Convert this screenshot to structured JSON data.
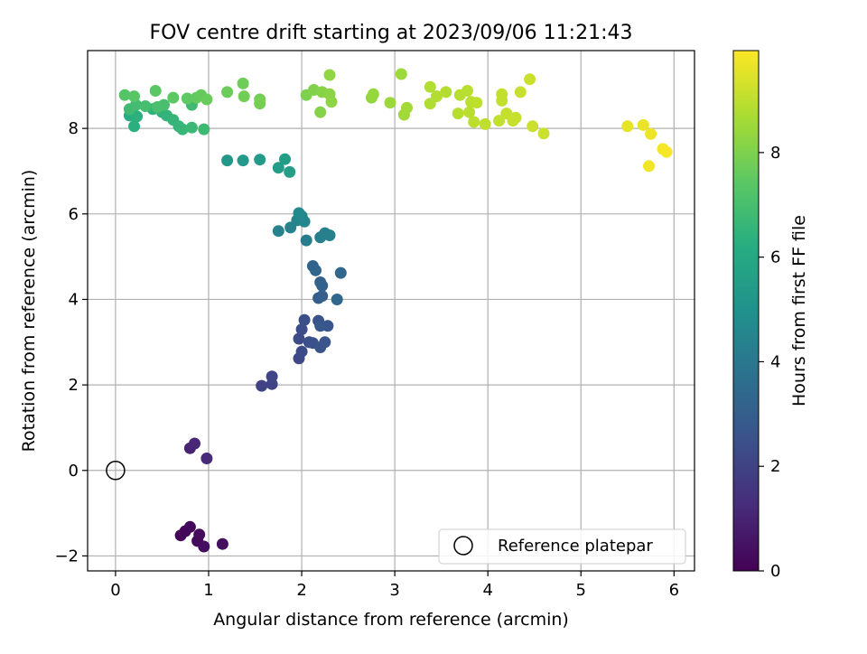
{
  "chart_data": {
    "type": "scatter",
    "title": "FOV centre drift starting at 2023/09/06 11:21:43",
    "xlabel": "Angular distance from reference (arcmin)",
    "ylabel": "Rotation from reference (arcmin)",
    "xlim": [
      -0.3,
      6.22
    ],
    "ylim": [
      -2.35,
      9.82
    ],
    "xticks": [
      0,
      1,
      2,
      3,
      4,
      5,
      6
    ],
    "yticks": [
      -2,
      0,
      2,
      4,
      6,
      8
    ],
    "xtick_labels": [
      "0",
      "1",
      "2",
      "3",
      "4",
      "5",
      "6"
    ],
    "ytick_labels": [
      "−2",
      "0",
      "2",
      "4",
      "6",
      "8"
    ],
    "grid": true,
    "colormap": "viridis",
    "colorbar": {
      "label": "Hours from first FF file",
      "range": [
        0,
        9.95
      ],
      "ticks": [
        0,
        2,
        4,
        6,
        8
      ],
      "tick_labels": [
        "0",
        "2",
        "4",
        "6",
        "8"
      ]
    },
    "legend": {
      "position": "lower-right",
      "entries": [
        "Reference platepar"
      ]
    },
    "reference_point": {
      "x": 0,
      "y": 0
    },
    "points": [
      [
        0.7,
        -1.52,
        0.1
      ],
      [
        0.75,
        -1.42,
        0.15
      ],
      [
        0.8,
        -1.32,
        0.2
      ],
      [
        0.88,
        -1.65,
        0.25
      ],
      [
        0.9,
        -1.5,
        0.3
      ],
      [
        0.95,
        -1.78,
        0.35
      ],
      [
        1.15,
        -1.72,
        0.4
      ],
      [
        0.8,
        0.52,
        1.0
      ],
      [
        0.85,
        0.63,
        1.1
      ],
      [
        0.98,
        0.28,
        1.2
      ],
      [
        1.57,
        1.98,
        2.0
      ],
      [
        1.68,
        2.02,
        2.05
      ],
      [
        1.68,
        2.2,
        2.1
      ],
      [
        1.97,
        2.62,
        2.2
      ],
      [
        2.0,
        2.78,
        2.25
      ],
      [
        1.97,
        3.08,
        2.3
      ],
      [
        2.0,
        3.3,
        2.35
      ],
      [
        2.03,
        3.52,
        2.4
      ],
      [
        2.08,
        3.0,
        2.45
      ],
      [
        2.12,
        2.98,
        2.5
      ],
      [
        2.18,
        3.5,
        2.55
      ],
      [
        2.2,
        2.88,
        2.6
      ],
      [
        2.25,
        3.0,
        2.65
      ],
      [
        2.28,
        3.38,
        2.7
      ],
      [
        2.2,
        3.38,
        2.75
      ],
      [
        2.18,
        4.03,
        3.0
      ],
      [
        2.22,
        4.08,
        3.05
      ],
      [
        2.2,
        4.4,
        3.1
      ],
      [
        2.22,
        4.32,
        3.15
      ],
      [
        2.12,
        4.78,
        3.2
      ],
      [
        2.15,
        4.68,
        3.25
      ],
      [
        2.38,
        4.0,
        3.3
      ],
      [
        2.42,
        4.62,
        3.35
      ],
      [
        2.05,
        5.38,
        4.2
      ],
      [
        2.2,
        5.45,
        4.25
      ],
      [
        2.25,
        5.55,
        4.3
      ],
      [
        2.3,
        5.5,
        4.35
      ],
      [
        1.75,
        5.6,
        4.4
      ],
      [
        1.88,
        5.68,
        4.45
      ],
      [
        1.95,
        5.85,
        4.5
      ],
      [
        2.0,
        5.95,
        4.55
      ],
      [
        2.03,
        5.82,
        4.6
      ],
      [
        1.97,
        6.02,
        4.65
      ],
      [
        1.2,
        7.25,
        5.3
      ],
      [
        1.37,
        7.25,
        5.35
      ],
      [
        1.55,
        7.27,
        5.4
      ],
      [
        1.75,
        7.08,
        5.45
      ],
      [
        1.82,
        7.28,
        5.5
      ],
      [
        1.87,
        6.98,
        5.55
      ],
      [
        0.15,
        8.3,
        6.2
      ],
      [
        0.18,
        8.4,
        6.25
      ],
      [
        0.2,
        8.05,
        6.3
      ],
      [
        0.23,
        8.28,
        6.35
      ],
      [
        0.4,
        8.45,
        6.4
      ],
      [
        0.5,
        8.38,
        6.45
      ],
      [
        0.55,
        8.3,
        6.5
      ],
      [
        0.62,
        8.2,
        6.55
      ],
      [
        0.68,
        8.05,
        6.6
      ],
      [
        0.72,
        7.98,
        6.65
      ],
      [
        0.82,
        8.02,
        6.7
      ],
      [
        0.95,
        7.98,
        6.75
      ],
      [
        0.82,
        8.55,
        6.8
      ],
      [
        0.15,
        8.45,
        6.85
      ],
      [
        0.22,
        8.55,
        6.9
      ],
      [
        0.32,
        8.52,
        6.95
      ],
      [
        0.52,
        8.55,
        7.0
      ],
      [
        0.45,
        8.5,
        7.05
      ],
      [
        0.1,
        8.78,
        7.3
      ],
      [
        0.2,
        8.75,
        7.35
      ],
      [
        0.43,
        8.88,
        7.4
      ],
      [
        0.62,
        8.72,
        7.45
      ],
      [
        0.77,
        8.7,
        7.5
      ],
      [
        0.87,
        8.72,
        7.55
      ],
      [
        0.92,
        8.78,
        7.6
      ],
      [
        0.98,
        8.68,
        7.65
      ],
      [
        1.2,
        8.85,
        7.7
      ],
      [
        1.37,
        9.05,
        7.75
      ],
      [
        1.38,
        8.75,
        7.8
      ],
      [
        1.55,
        8.68,
        7.85
      ],
      [
        1.55,
        8.58,
        7.9
      ],
      [
        2.05,
        8.78,
        8.0
      ],
      [
        2.13,
        8.9,
        8.05
      ],
      [
        2.2,
        8.38,
        8.1
      ],
      [
        2.22,
        8.85,
        8.15
      ],
      [
        2.3,
        8.8,
        8.2
      ],
      [
        2.32,
        8.62,
        8.25
      ],
      [
        2.3,
        9.25,
        8.3
      ],
      [
        2.75,
        8.72,
        8.35
      ],
      [
        2.77,
        8.8,
        8.4
      ],
      [
        2.95,
        8.6,
        8.45
      ],
      [
        3.07,
        9.27,
        8.5
      ],
      [
        3.1,
        8.32,
        8.55
      ],
      [
        3.13,
        8.48,
        8.6
      ],
      [
        3.38,
        8.58,
        8.8
      ],
      [
        3.38,
        8.97,
        8.82
      ],
      [
        3.45,
        8.75,
        8.84
      ],
      [
        3.55,
        8.85,
        8.86
      ],
      [
        3.68,
        8.35,
        8.88
      ],
      [
        3.7,
        8.78,
        8.9
      ],
      [
        3.78,
        8.88,
        8.92
      ],
      [
        3.8,
        8.38,
        8.94
      ],
      [
        3.82,
        8.62,
        8.96
      ],
      [
        3.85,
        8.15,
        8.98
      ],
      [
        3.88,
        8.6,
        9.0
      ],
      [
        3.97,
        8.1,
        9.02
      ],
      [
        4.12,
        8.18,
        9.04
      ],
      [
        4.15,
        8.8,
        9.06
      ],
      [
        4.15,
        8.65,
        9.08
      ],
      [
        4.2,
        8.35,
        9.1
      ],
      [
        4.27,
        8.18,
        9.12
      ],
      [
        4.3,
        8.25,
        9.14
      ],
      [
        4.35,
        8.85,
        9.16
      ],
      [
        4.45,
        9.15,
        9.18
      ],
      [
        4.48,
        8.05,
        9.2
      ],
      [
        4.6,
        7.88,
        9.22
      ],
      [
        5.5,
        8.05,
        9.6
      ],
      [
        5.67,
        8.08,
        9.65
      ],
      [
        5.75,
        7.87,
        9.7
      ],
      [
        5.73,
        7.12,
        9.75
      ],
      [
        5.88,
        7.52,
        9.8
      ],
      [
        5.92,
        7.45,
        9.85
      ]
    ]
  }
}
